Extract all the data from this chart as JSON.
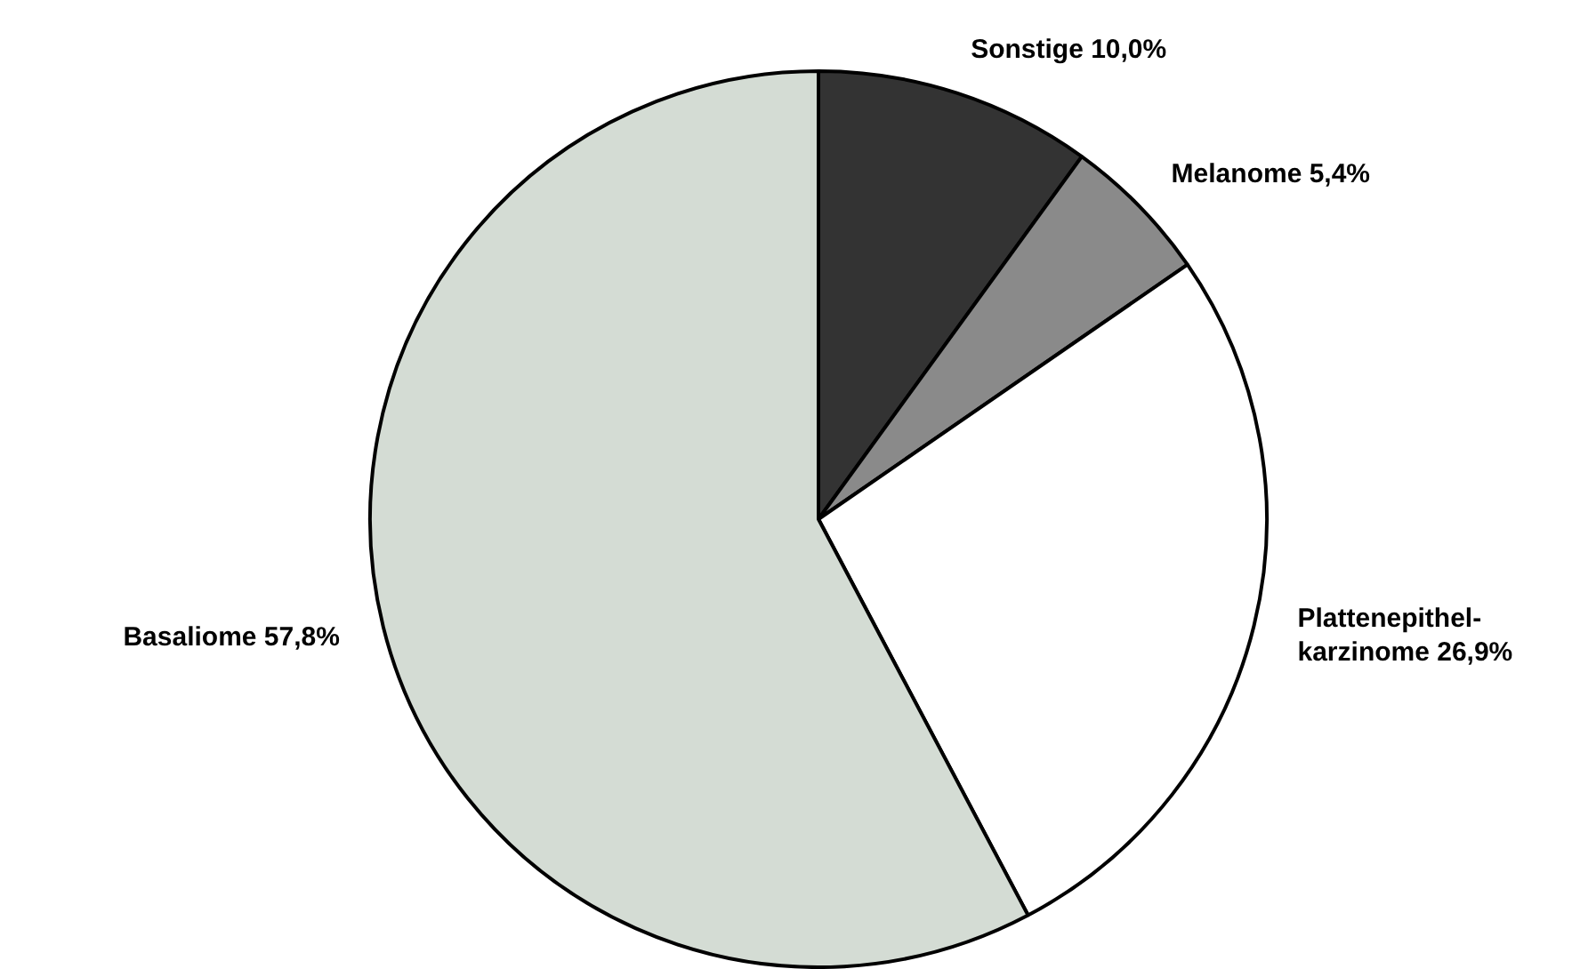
{
  "chart_data": {
    "type": "pie",
    "categories": [
      "Sonstige",
      "Melanome",
      "Plattenepithel-karzinome",
      "Basaliome"
    ],
    "values": [
      10.0,
      5.4,
      26.9,
      57.8
    ],
    "value_labels": [
      "10,0%",
      "5,4%",
      "26,9%",
      "57,8%"
    ],
    "colors": [
      "#333333",
      "#8a8a8a",
      "#ffffff",
      "#d4dcd4"
    ]
  }
}
